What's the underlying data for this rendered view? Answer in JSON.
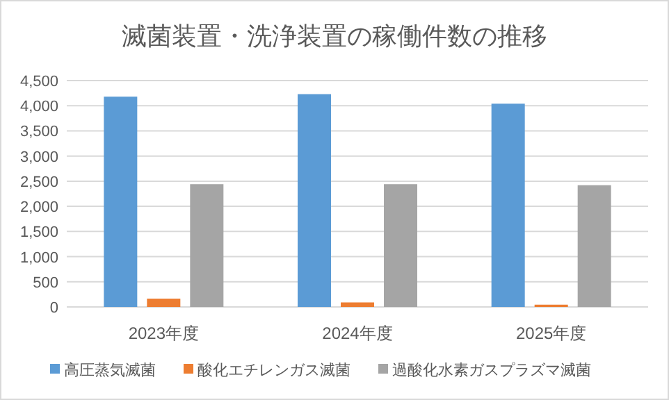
{
  "chart_data": {
    "type": "bar",
    "title": "滅菌装置・洗浄装置の稼働件数の推移",
    "categories": [
      "2023年度",
      "2024年度",
      "2025年度"
    ],
    "series": [
      {
        "name": "高圧蒸気滅菌",
        "color": "#5b9bd5",
        "values": [
          4180,
          4230,
          4040
        ]
      },
      {
        "name": "酸化エチレンガス滅菌",
        "color": "#ed7d31",
        "values": [
          165,
          90,
          45
        ]
      },
      {
        "name": "過酸化水素ガスプラズマ滅菌",
        "color": "#a5a5a5",
        "values": [
          2440,
          2440,
          2420
        ]
      }
    ],
    "ylim": [
      0,
      4500
    ],
    "yticks": [
      {
        "value": 0,
        "label": "0"
      },
      {
        "value": 500,
        "label": "500"
      },
      {
        "value": 1000,
        "label": "1,000"
      },
      {
        "value": 1500,
        "label": "1,500"
      },
      {
        "value": 2000,
        "label": "2,000"
      },
      {
        "value": 2500,
        "label": "2,500"
      },
      {
        "value": 3000,
        "label": "3,000"
      },
      {
        "value": 3500,
        "label": "3,500"
      },
      {
        "value": 4000,
        "label": "4,000"
      },
      {
        "value": 4500,
        "label": "4,500"
      }
    ],
    "grid": "y",
    "legend": "bottom"
  }
}
